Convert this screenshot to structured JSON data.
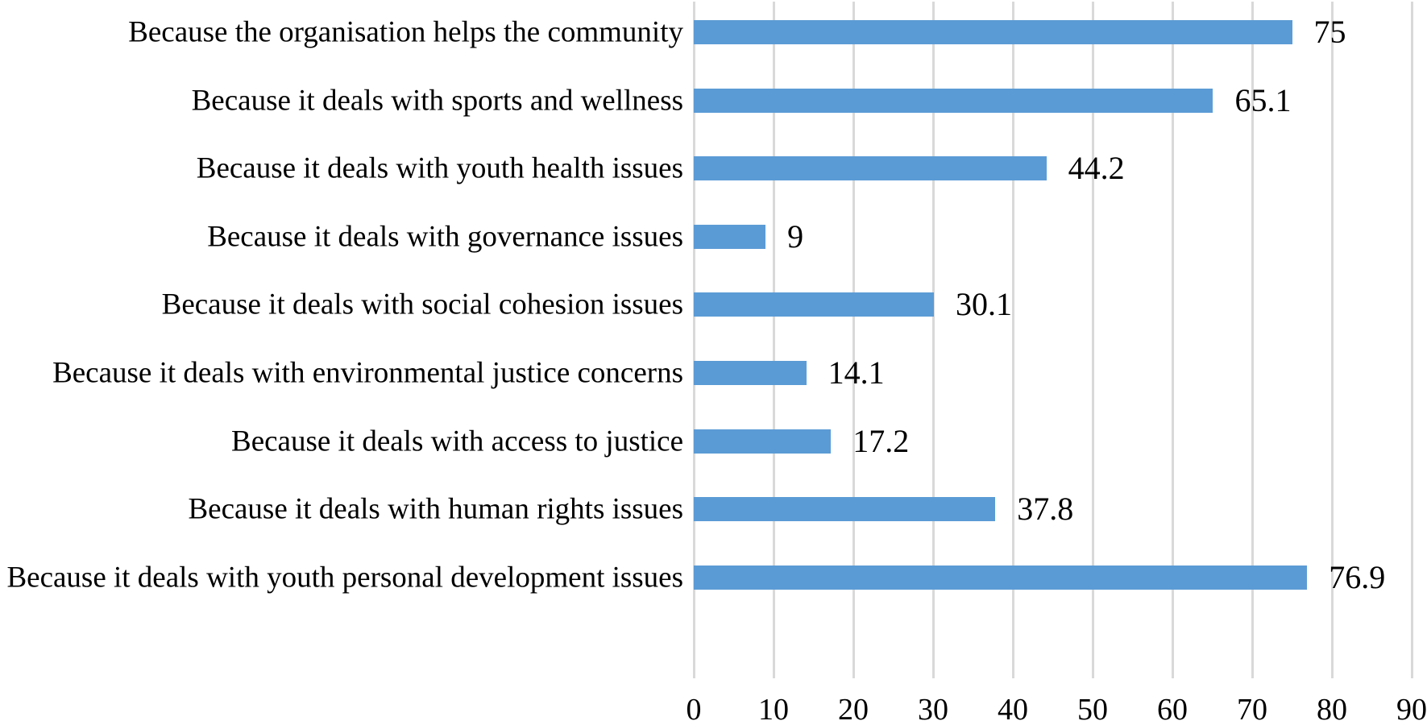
{
  "chart_data": {
    "type": "bar",
    "orientation": "horizontal",
    "title": "",
    "xlabel": "",
    "ylabel": "",
    "categories": [
      "Because the organisation helps the community",
      "Because it deals with sports and wellness",
      "Because it deals with youth health issues",
      "Because it deals with governance issues",
      "Because it deals with social cohesion issues",
      "Because it deals with environmental justice concerns",
      "Because it deals with access to justice",
      "Because it deals with human rights issues",
      "Because it deals with youth personal development issues"
    ],
    "values": [
      75,
      65.1,
      44.2,
      9,
      30.1,
      14.1,
      17.2,
      37.8,
      76.9
    ],
    "value_labels": [
      "75",
      "65.1",
      "44.2",
      "9",
      "30.1",
      "14.1",
      "17.2",
      "37.8",
      "76.9"
    ],
    "xlim": [
      0,
      90
    ],
    "x_ticks": [
      0,
      10,
      20,
      30,
      40,
      50,
      60,
      70,
      80,
      90
    ],
    "grid": "vertical-gridlines-on",
    "legend": "none",
    "data_labels": "outside-end",
    "bar_color": "#5B9BD5",
    "gridline_color": "#D9D9D9",
    "text_color": "#000000",
    "background_color": "#FFFFFF"
  }
}
